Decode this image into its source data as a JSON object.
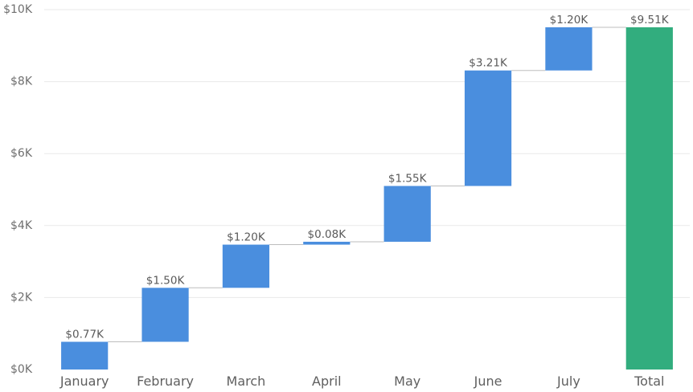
{
  "chart_data": {
    "type": "waterfall",
    "categories": [
      "January",
      "February",
      "March",
      "April",
      "May",
      "June",
      "July",
      "Total"
    ],
    "values": [
      0.77,
      1.5,
      1.2,
      0.08,
      1.55,
      3.21,
      1.2,
      9.51
    ],
    "value_unit": "thousands of dollars",
    "value_labels": [
      "$0.77K",
      "$1.50K",
      "$1.20K",
      "$0.08K",
      "$1.55K",
      "$3.21K",
      "$1.20K",
      "$9.51K"
    ],
    "is_total": [
      false,
      false,
      false,
      false,
      false,
      false,
      false,
      true
    ],
    "ylim": [
      0,
      10
    ],
    "y_ticks": [
      0,
      2,
      4,
      6,
      8,
      10
    ],
    "y_tick_labels": [
      "$0K",
      "$2K",
      "$4K",
      "$6K",
      "$8K",
      "$10K"
    ],
    "title": "",
    "xlabel": "",
    "ylabel": "",
    "grid": true,
    "legend": "none",
    "colors": {
      "increase": "#4a8ede",
      "total": "#32ad7e",
      "grid": "#e9e9e9",
      "connector": "#bdbdbd"
    }
  }
}
